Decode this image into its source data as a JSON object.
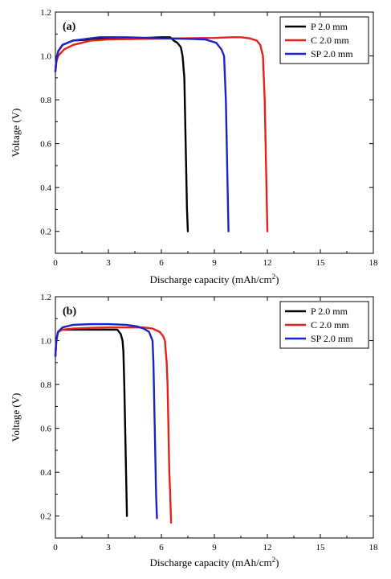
{
  "chart_data": [
    {
      "type": "line",
      "panel_label": "(a)",
      "xlabel": "Discharge capacity (mAh/cm",
      "xlabel_sup": "2",
      "xlabel_tail": ")",
      "ylabel": "Voltage (V)",
      "xlim": [
        0,
        18
      ],
      "ylim": [
        0.1,
        1.2
      ],
      "x_ticks": [
        "0",
        "3",
        "6",
        "9",
        "12",
        "15",
        "18"
      ],
      "y_ticks": [
        "0.2",
        "0.4",
        "0.6",
        "0.8",
        "1.0",
        "1.2"
      ],
      "legend_position": "top-right",
      "series": [
        {
          "name": "P 2.0 mm",
          "color": "#000000",
          "points": [
            [
              0,
              0.93
            ],
            [
              0.05,
              0.98
            ],
            [
              0.15,
              1.02
            ],
            [
              0.4,
              1.05
            ],
            [
              1,
              1.07
            ],
            [
              2,
              1.075
            ],
            [
              3,
              1.078
            ],
            [
              4,
              1.08
            ],
            [
              5,
              1.082
            ],
            [
              6,
              1.085
            ],
            [
              6.5,
              1.085
            ],
            [
              6.7,
              1.07
            ],
            [
              6.9,
              1.06
            ],
            [
              7.1,
              1.04
            ],
            [
              7.2,
              1.0
            ],
            [
              7.3,
              0.9
            ],
            [
              7.35,
              0.7
            ],
            [
              7.4,
              0.5
            ],
            [
              7.45,
              0.3
            ],
            [
              7.5,
              0.2
            ]
          ]
        },
        {
          "name": "C 2.0 mm",
          "color": "#e8201b",
          "points": [
            [
              0,
              0.93
            ],
            [
              0.05,
              0.97
            ],
            [
              0.15,
              1.0
            ],
            [
              0.5,
              1.03
            ],
            [
              1,
              1.05
            ],
            [
              2,
              1.07
            ],
            [
              3,
              1.075
            ],
            [
              5,
              1.078
            ],
            [
              7,
              1.08
            ],
            [
              9,
              1.082
            ],
            [
              10,
              1.085
            ],
            [
              10.5,
              1.085
            ],
            [
              11,
              1.08
            ],
            [
              11.4,
              1.07
            ],
            [
              11.6,
              1.05
            ],
            [
              11.75,
              1.0
            ],
            [
              11.8,
              0.9
            ],
            [
              11.85,
              0.8
            ],
            [
              11.9,
              0.6
            ],
            [
              11.95,
              0.4
            ],
            [
              12.0,
              0.2
            ]
          ]
        },
        {
          "name": "SP 2.0 mm",
          "color": "#1a24c4",
          "points": [
            [
              0,
              0.93
            ],
            [
              0.05,
              0.98
            ],
            [
              0.15,
              1.02
            ],
            [
              0.4,
              1.05
            ],
            [
              1,
              1.07
            ],
            [
              2,
              1.08
            ],
            [
              2.5,
              1.085
            ],
            [
              4,
              1.085
            ],
            [
              6,
              1.08
            ],
            [
              7.5,
              1.078
            ],
            [
              8.5,
              1.075
            ],
            [
              9.1,
              1.06
            ],
            [
              9.4,
              1.03
            ],
            [
              9.55,
              1.0
            ],
            [
              9.6,
              0.9
            ],
            [
              9.65,
              0.8
            ],
            [
              9.7,
              0.6
            ],
            [
              9.75,
              0.4
            ],
            [
              9.8,
              0.2
            ]
          ]
        }
      ]
    },
    {
      "type": "line",
      "panel_label": "(b)",
      "xlabel": "Discharge capacity (mAh/cm",
      "xlabel_sup": "2",
      "xlabel_tail": ")",
      "ylabel": "Voltage (V)",
      "xlim": [
        0,
        18
      ],
      "ylim": [
        0.1,
        1.2
      ],
      "x_ticks": [
        "0",
        "3",
        "6",
        "9",
        "12",
        "15",
        "18"
      ],
      "y_ticks": [
        "0.2",
        "0.4",
        "0.6",
        "0.8",
        "1.0",
        "1.2"
      ],
      "legend_position": "top-right",
      "series": [
        {
          "name": "P 2.0 mm",
          "color": "#000000",
          "points": [
            [
              0,
              0.93
            ],
            [
              0.05,
              1.0
            ],
            [
              0.15,
              1.04
            ],
            [
              0.4,
              1.05
            ],
            [
              1,
              1.05
            ],
            [
              2,
              1.05
            ],
            [
              3,
              1.05
            ],
            [
              3.5,
              1.05
            ],
            [
              3.7,
              1.03
            ],
            [
              3.8,
              1.0
            ],
            [
              3.85,
              0.95
            ],
            [
              3.9,
              0.8
            ],
            [
              3.95,
              0.6
            ],
            [
              4.0,
              0.4
            ],
            [
              4.05,
              0.2
            ]
          ]
        },
        {
          "name": "C 2.0 mm",
          "color": "#e8201b",
          "points": [
            [
              0,
              0.93
            ],
            [
              0.05,
              1.0
            ],
            [
              0.15,
              1.04
            ],
            [
              0.4,
              1.05
            ],
            [
              1,
              1.055
            ],
            [
              2,
              1.058
            ],
            [
              3,
              1.06
            ],
            [
              4,
              1.06
            ],
            [
              5,
              1.06
            ],
            [
              5.5,
              1.055
            ],
            [
              5.9,
              1.04
            ],
            [
              6.1,
              1.02
            ],
            [
              6.2,
              1.0
            ],
            [
              6.3,
              0.9
            ],
            [
              6.35,
              0.8
            ],
            [
              6.4,
              0.6
            ],
            [
              6.45,
              0.4
            ],
            [
              6.5,
              0.3
            ],
            [
              6.55,
              0.17
            ]
          ]
        },
        {
          "name": "SP 2.0 mm",
          "color": "#1a24c4",
          "points": [
            [
              0,
              0.93
            ],
            [
              0.05,
              1.0
            ],
            [
              0.15,
              1.04
            ],
            [
              0.4,
              1.06
            ],
            [
              1,
              1.072
            ],
            [
              2,
              1.075
            ],
            [
              3,
              1.075
            ],
            [
              4,
              1.072
            ],
            [
              4.6,
              1.065
            ],
            [
              5.0,
              1.055
            ],
            [
              5.3,
              1.04
            ],
            [
              5.5,
              1.0
            ],
            [
              5.55,
              0.9
            ],
            [
              5.6,
              0.7
            ],
            [
              5.65,
              0.5
            ],
            [
              5.7,
              0.3
            ],
            [
              5.75,
              0.19
            ]
          ]
        }
      ]
    }
  ]
}
